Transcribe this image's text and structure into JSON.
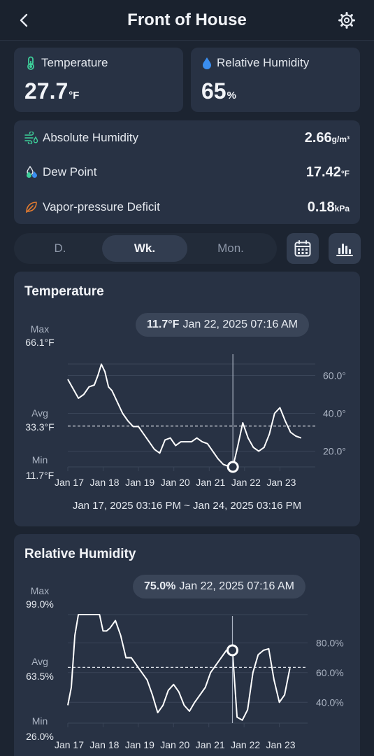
{
  "header": {
    "title": "Front of House",
    "back_icon": "chevron-left-icon",
    "settings_icon": "gear-icon"
  },
  "metrics": {
    "temperature": {
      "label": "Temperature",
      "value": "27.7",
      "unit": "°F",
      "icon": "thermometer-icon"
    },
    "humidity": {
      "label": "Relative Humidity",
      "value": "65",
      "unit": "%",
      "icon": "water-drop-icon"
    }
  },
  "details": [
    {
      "label": "Absolute Humidity",
      "value": "2.66",
      "unit": "g/m³",
      "icon": "wind-drops-icon"
    },
    {
      "label": "Dew Point",
      "value": "17.42",
      "unit": "°F",
      "icon": "dew-drops-icon"
    },
    {
      "label": "Vapor-pressure Deficit",
      "value": "0.18",
      "unit": "kPa",
      "icon": "leaf-icon"
    }
  ],
  "range_tabs": [
    "D.",
    "Wk.",
    "Mon."
  ],
  "active_tab": "Wk.",
  "toolbar": {
    "calendar_icon": "calendar-icon",
    "chart_icon": "bar-chart-icon"
  },
  "colors": {
    "background": "#1c2431",
    "card": "#283244",
    "temperature_icon": "#3ecf9a",
    "humidity_icon": "#3a8ef0",
    "absolute_humidity_icon": "#3ecf9a",
    "vpd_icon": "#e07a30"
  },
  "temp_chart": {
    "title": "Temperature",
    "tooltip_value": "11.7°F",
    "tooltip_time": "Jan 22, 2025 07:16 AM",
    "max_label": "Max",
    "max_value": "66.1°F",
    "avg_label": "Avg",
    "avg_value": "33.3°F",
    "min_label": "Min",
    "min_value": "11.7°F",
    "range": "Jan 17, 2025 03:16 PM ~ Jan 24, 2025 03:16 PM"
  },
  "rh_chart": {
    "title": "Relative Humidity",
    "tooltip_value": "75.0%",
    "tooltip_time": "Jan 22, 2025 07:16 AM",
    "max_label": "Max",
    "max_value": "99.0%",
    "avg_label": "Avg",
    "avg_value": "63.5%",
    "min_label": "Min",
    "min_value": "26.0%"
  },
  "chart_data": [
    {
      "type": "line",
      "title": "Temperature",
      "x_ticks": [
        "Jan 17",
        "Jan 18",
        "Jan 19",
        "Jan 20",
        "Jan 21",
        "Jan 22",
        "Jan 23"
      ],
      "y_ticks": [
        "60.0°",
        "40.0°",
        "20.0°"
      ],
      "y_tick_values": [
        60,
        40,
        20
      ],
      "ylim": [
        11.7,
        66.1
      ],
      "xlim_days": [
        0,
        7
      ],
      "average": 33.3,
      "cursor_day": 4.67,
      "cursor_value": 11.7,
      "series": [
        {
          "x": [
            0,
            0.15,
            0.3,
            0.45,
            0.6,
            0.75,
            0.85,
            0.95,
            1.05,
            1.15,
            1.25,
            1.4,
            1.55,
            1.7,
            1.85,
            2.0,
            2.15,
            2.3,
            2.45,
            2.6,
            2.75,
            2.9,
            3.05,
            3.2,
            3.35,
            3.5,
            3.65,
            3.8,
            3.95,
            4.1,
            4.25,
            4.4,
            4.55,
            4.67,
            4.8,
            4.95,
            5.1,
            5.25,
            5.4,
            5.55,
            5.7,
            5.85,
            6.0,
            6.15,
            6.3,
            6.45,
            6.6
          ],
          "y": [
            58,
            53,
            48,
            50,
            54,
            55,
            60,
            66,
            62,
            54,
            52,
            46,
            40,
            36,
            33,
            33,
            29,
            25,
            21,
            19,
            26,
            27,
            23,
            25,
            25,
            25,
            27,
            25,
            24,
            20,
            16,
            13,
            12,
            11.7,
            22,
            35,
            27,
            22,
            20,
            22,
            29,
            40,
            43,
            36,
            30,
            28,
            27
          ]
        }
      ]
    },
    {
      "type": "line",
      "title": "Relative Humidity",
      "x_ticks": [
        "Jan 17",
        "Jan 18",
        "Jan 19",
        "Jan 20",
        "Jan 21",
        "Jan 22",
        "Jan 23"
      ],
      "y_ticks": [
        "80.0%",
        "60.0%",
        "40.0%"
      ],
      "y_tick_values": [
        80,
        60,
        40
      ],
      "ylim": [
        26.0,
        99.0
      ],
      "xlim_days": [
        0,
        7
      ],
      "average": 63.5,
      "cursor_day": 4.67,
      "cursor_value": 75.0,
      "series": [
        {
          "x": [
            0,
            0.1,
            0.2,
            0.3,
            0.45,
            0.6,
            0.75,
            0.9,
            1.0,
            1.1,
            1.2,
            1.35,
            1.5,
            1.65,
            1.8,
            1.95,
            2.1,
            2.25,
            2.4,
            2.55,
            2.7,
            2.85,
            3.0,
            3.15,
            3.3,
            3.45,
            3.6,
            3.75,
            3.9,
            4.05,
            4.2,
            4.35,
            4.5,
            4.67,
            4.8,
            4.95,
            5.1,
            5.25,
            5.4,
            5.55,
            5.7,
            5.85,
            6.0,
            6.15,
            6.3
          ],
          "y": [
            38,
            50,
            85,
            99,
            99,
            99,
            99,
            99,
            88,
            88,
            90,
            95,
            85,
            70,
            70,
            65,
            60,
            55,
            45,
            33,
            38,
            48,
            52,
            47,
            38,
            34,
            40,
            45,
            50,
            60,
            65,
            70,
            75,
            75,
            30,
            28,
            35,
            60,
            72,
            75,
            76,
            55,
            40,
            45,
            63
          ]
        }
      ]
    }
  ]
}
